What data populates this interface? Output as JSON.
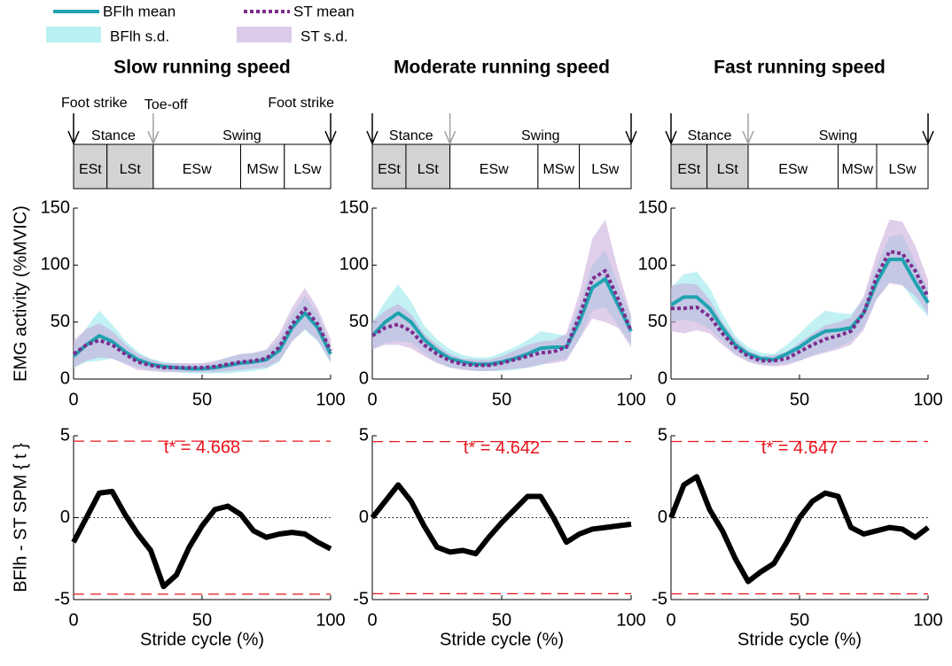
{
  "chart_data": [
    {
      "type": "line",
      "title": "Slow running speed",
      "ylabel": "EMG activity (%MVIC)",
      "foot_strike_label": "Foot strike",
      "toe_off_label": "Toe-off",
      "stance_label": "Stance",
      "swing_label": "Swing",
      "phase_labels": [
        "ESt",
        "LSt",
        "ESw",
        "MSw",
        "LSw"
      ],
      "phase_bounds": [
        0,
        13,
        31,
        65,
        82,
        100
      ],
      "x": [
        0,
        5,
        10,
        15,
        20,
        25,
        30,
        35,
        40,
        45,
        50,
        55,
        60,
        65,
        70,
        75,
        80,
        85,
        90,
        95,
        100
      ],
      "series": [
        {
          "name": "BFlh mean",
          "color": "#1fa3b0",
          "sd_name": "BFlh s.d.",
          "sd_color": "#8ee6ea",
          "values": [
            20,
            30,
            38,
            33,
            24,
            17,
            13,
            11,
            10,
            9,
            9,
            10,
            12,
            14,
            15,
            17,
            25,
            45,
            58,
            45,
            22
          ],
          "sd": [
            10,
            15,
            22,
            15,
            10,
            7,
            5,
            4,
            4,
            4,
            4,
            5,
            7,
            8,
            8,
            8,
            10,
            12,
            15,
            12,
            8
          ]
        },
        {
          "name": "ST mean",
          "color": "#7b2d8e",
          "sd_name": "ST s.d.",
          "sd_color": "#c7a6d8",
          "dashed": true,
          "values": [
            22,
            30,
            34,
            30,
            22,
            15,
            12,
            10,
            10,
            10,
            10,
            11,
            13,
            15,
            16,
            18,
            28,
            48,
            62,
            48,
            25
          ],
          "sd": [
            12,
            14,
            15,
            12,
            9,
            7,
            5,
            4,
            4,
            4,
            4,
            5,
            6,
            7,
            7,
            8,
            12,
            15,
            18,
            14,
            10
          ]
        }
      ],
      "xlim": [
        0,
        100
      ],
      "xticks": [
        0,
        50,
        100
      ],
      "ylim": [
        0,
        150
      ],
      "yticks": [
        0,
        50,
        100,
        150
      ]
    },
    {
      "type": "line",
      "title": "Moderate running speed",
      "stance_label": "Stance",
      "swing_label": "Swing",
      "phase_labels": [
        "ESt",
        "LSt",
        "ESw",
        "MSw",
        "LSw"
      ],
      "phase_bounds": [
        0,
        13,
        30,
        64,
        80,
        100
      ],
      "x": [
        0,
        5,
        10,
        15,
        20,
        25,
        30,
        35,
        40,
        45,
        50,
        55,
        60,
        65,
        70,
        75,
        80,
        85,
        90,
        95,
        100
      ],
      "series": [
        {
          "color": "#1fa3b0",
          "sd_color": "#8ee6ea",
          "values": [
            38,
            50,
            58,
            50,
            35,
            25,
            18,
            15,
            13,
            13,
            15,
            18,
            22,
            27,
            28,
            28,
            50,
            80,
            88,
            65,
            42
          ],
          "sd": [
            12,
            18,
            25,
            18,
            12,
            10,
            8,
            6,
            6,
            6,
            8,
            10,
            12,
            15,
            12,
            10,
            15,
            20,
            25,
            18,
            12
          ]
        },
        {
          "color": "#7b2d8e",
          "sd_color": "#c7a6d8",
          "dashed": true,
          "values": [
            38,
            45,
            48,
            42,
            30,
            22,
            16,
            13,
            12,
            12,
            14,
            17,
            20,
            23,
            24,
            28,
            55,
            88,
            95,
            70,
            42
          ],
          "sd": [
            12,
            15,
            18,
            15,
            10,
            8,
            6,
            5,
            5,
            5,
            6,
            8,
            10,
            10,
            10,
            12,
            20,
            35,
            45,
            25,
            14
          ]
        }
      ],
      "xlim": [
        0,
        100
      ],
      "xticks": [
        0,
        50,
        100
      ],
      "ylim": [
        0,
        150
      ],
      "yticks": [
        0,
        50,
        100,
        150
      ]
    },
    {
      "type": "line",
      "title": "Fast running speed",
      "stance_label": "Stance",
      "swing_label": "Swing",
      "phase_labels": [
        "ESt",
        "LSt",
        "ESw",
        "MSw",
        "LSw"
      ],
      "phase_bounds": [
        0,
        14,
        30,
        65,
        80,
        100
      ],
      "x": [
        0,
        5,
        10,
        15,
        20,
        25,
        30,
        35,
        40,
        45,
        50,
        55,
        60,
        65,
        70,
        75,
        80,
        85,
        90,
        95,
        100
      ],
      "series": [
        {
          "color": "#1fa3b0",
          "sd_color": "#8ee6ea",
          "values": [
            65,
            72,
            72,
            62,
            45,
            30,
            22,
            18,
            17,
            22,
            28,
            36,
            42,
            43,
            45,
            58,
            85,
            105,
            105,
            85,
            67
          ],
          "sd": [
            15,
            20,
            22,
            18,
            12,
            8,
            6,
            5,
            5,
            8,
            12,
            15,
            18,
            15,
            12,
            12,
            15,
            20,
            22,
            18,
            12
          ]
        },
        {
          "color": "#7b2d8e",
          "sd_color": "#c7a6d8",
          "dashed": true,
          "values": [
            62,
            62,
            63,
            55,
            40,
            28,
            20,
            16,
            16,
            18,
            24,
            30,
            35,
            38,
            42,
            58,
            90,
            112,
            110,
            95,
            72
          ],
          "sd": [
            20,
            22,
            20,
            15,
            10,
            7,
            5,
            4,
            5,
            6,
            8,
            10,
            12,
            12,
            12,
            15,
            20,
            28,
            28,
            22,
            15
          ]
        }
      ],
      "xlim": [
        0,
        100
      ],
      "xticks": [
        0,
        50,
        100
      ],
      "ylim": [
        0,
        150
      ],
      "yticks": [
        0,
        50,
        100,
        150
      ]
    },
    {
      "type": "line",
      "ylabel": "BFlh - ST SPM { t }",
      "xlabel": "Stride cycle (%)",
      "threshold": 4.668,
      "threshold_label": "t* = 4.668",
      "threshold_color": "#e8141b",
      "x": [
        0,
        5,
        10,
        15,
        20,
        25,
        30,
        35,
        40,
        45,
        50,
        55,
        60,
        65,
        70,
        75,
        80,
        85,
        90,
        95,
        100
      ],
      "series": [
        {
          "color": "#000000",
          "values": [
            -1.5,
            0,
            1.5,
            1.6,
            0.2,
            -1,
            -2,
            -4.2,
            -3.5,
            -1.8,
            -0.5,
            0.5,
            0.7,
            0.2,
            -0.8,
            -1.2,
            -1,
            -0.9,
            -1,
            -1.5,
            -1.9
          ]
        }
      ],
      "xlim": [
        0,
        100
      ],
      "xticks": [
        0,
        50,
        100
      ],
      "ylim": [
        -5,
        5
      ],
      "yticks": [
        -5,
        0,
        5
      ]
    },
    {
      "type": "line",
      "xlabel": "Stride cycle (%)",
      "threshold": 4.642,
      "threshold_label": "t* = 4.642",
      "threshold_color": "#e8141b",
      "x": [
        0,
        5,
        10,
        15,
        20,
        25,
        30,
        35,
        40,
        45,
        50,
        55,
        60,
        65,
        70,
        75,
        80,
        85,
        90,
        95,
        100
      ],
      "series": [
        {
          "color": "#000000",
          "values": [
            0,
            1,
            2,
            1,
            -0.5,
            -1.8,
            -2.1,
            -2,
            -2.2,
            -1.2,
            -0.3,
            0.5,
            1.3,
            1.3,
            0,
            -1.5,
            -1,
            -0.7,
            -0.6,
            -0.5,
            -0.4
          ]
        }
      ],
      "xlim": [
        0,
        100
      ],
      "xticks": [
        0,
        50,
        100
      ],
      "ylim": [
        -5,
        5
      ],
      "yticks": [
        -5,
        0,
        5
      ]
    },
    {
      "type": "line",
      "xlabel": "Stride cycle (%)",
      "threshold": 4.647,
      "threshold_label": "t* = 4.647",
      "threshold_color": "#e8141b",
      "x": [
        0,
        5,
        10,
        15,
        20,
        25,
        30,
        35,
        40,
        45,
        50,
        55,
        60,
        65,
        70,
        75,
        80,
        85,
        90,
        95,
        100
      ],
      "series": [
        {
          "color": "#000000",
          "values": [
            0,
            2,
            2.5,
            0.5,
            -0.8,
            -2.5,
            -3.9,
            -3.3,
            -2.8,
            -1.5,
            0,
            1,
            1.5,
            1.3,
            -0.6,
            -1,
            -0.8,
            -0.6,
            -0.7,
            -1.2,
            -0.6
          ]
        }
      ],
      "xlim": [
        0,
        100
      ],
      "xticks": [
        0,
        50,
        100
      ],
      "ylim": [
        -5,
        5
      ],
      "yticks": [
        -5,
        0,
        5
      ]
    }
  ]
}
